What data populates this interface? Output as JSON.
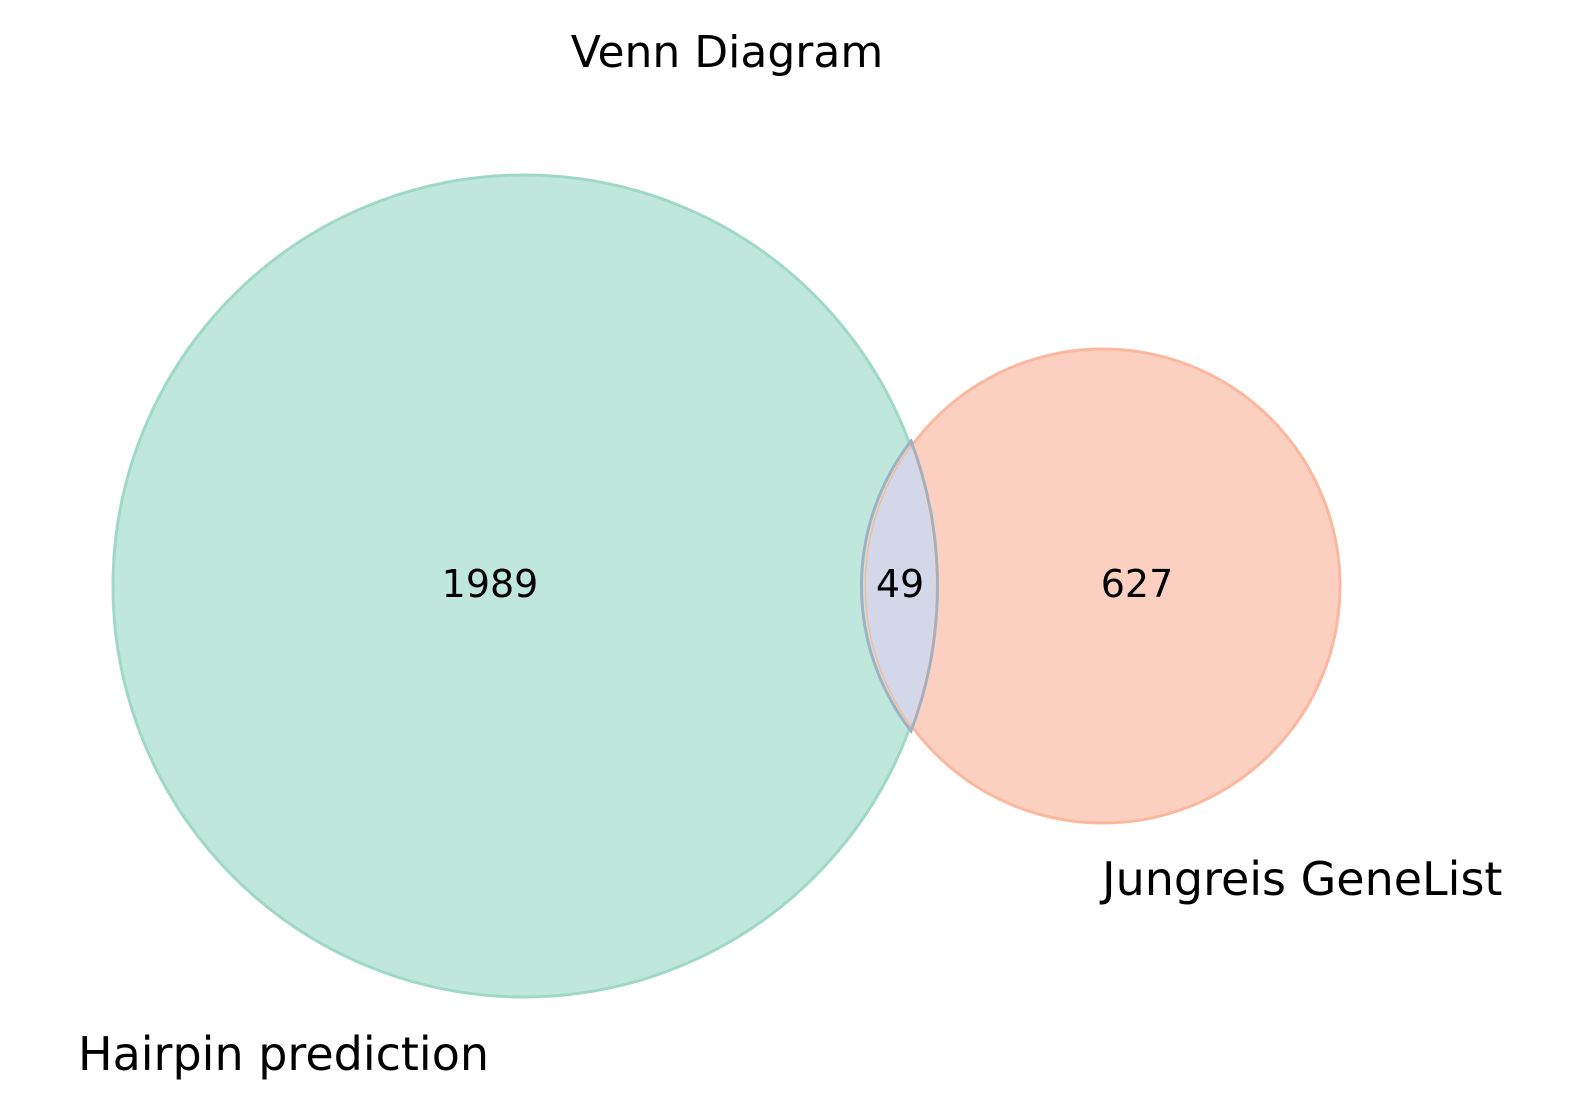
{
  "diagram": {
    "type": "venn2",
    "title": "Venn Diagram",
    "sets": [
      {
        "name": "Hairpin prediction",
        "only_count": "1989",
        "color": "#66c2a5"
      },
      {
        "name": "Jungreis GeneList",
        "only_count": "627",
        "color": "#fc8d62"
      }
    ],
    "intersection": {
      "count": "49",
      "color": "#8da0cb"
    }
  }
}
